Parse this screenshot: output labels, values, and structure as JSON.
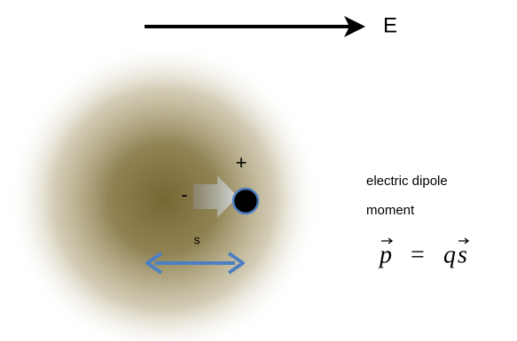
{
  "field": {
    "label": "E"
  },
  "dipole": {
    "plus": "+",
    "minus": "-",
    "separation": "s"
  },
  "caption": {
    "lines": [
      "electric dipole",
      "moment"
    ]
  },
  "equation": {
    "lhs": "p",
    "op": "=",
    "charge": "q",
    "displacement": "s"
  }
}
